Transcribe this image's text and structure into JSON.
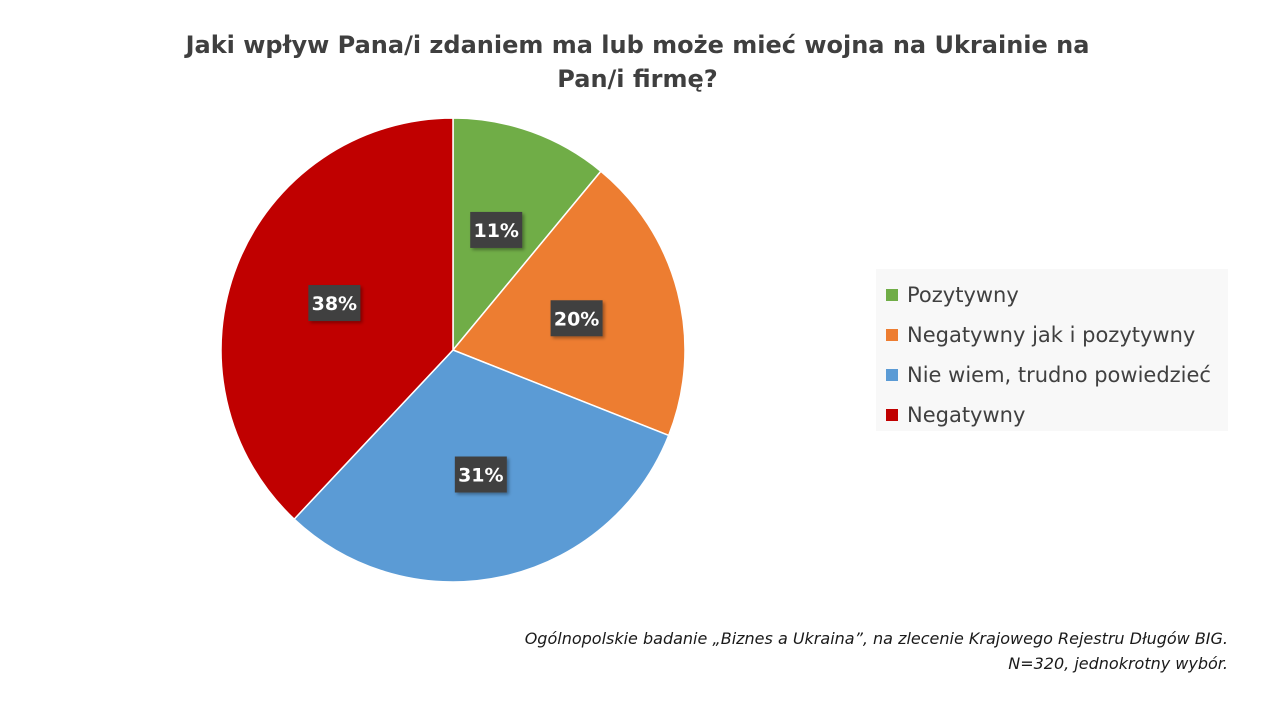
{
  "chart_data": {
    "type": "pie",
    "title_line1": "Jaki wpływ Pana/i zdaniem ma lub może mieć wojna na Ukrainie na",
    "title_line2": "Pan/i firmę?",
    "slices": [
      {
        "label": "Pozytywny",
        "value": 11,
        "value_label": "11%",
        "color": "#70AD47"
      },
      {
        "label": "Negatywny jak i pozytywny",
        "value": 20,
        "value_label": "20%",
        "color": "#ED7D31"
      },
      {
        "label": "Nie wiem, trudno powiedzieć",
        "value": 31,
        "value_label": "31%",
        "color": "#5B9BD5"
      },
      {
        "label": "Negatywny",
        "value": 38,
        "value_label": "38%",
        "color": "#C00000"
      }
    ],
    "legend_position": "right"
  },
  "footer": {
    "source_line1": "Ogólnopolskie badanie „Biznes a Ukraina”, na zlecenie Krajowego Rejestru Długów BIG.",
    "source_line2": "N=320, jednokrotny wybór."
  }
}
